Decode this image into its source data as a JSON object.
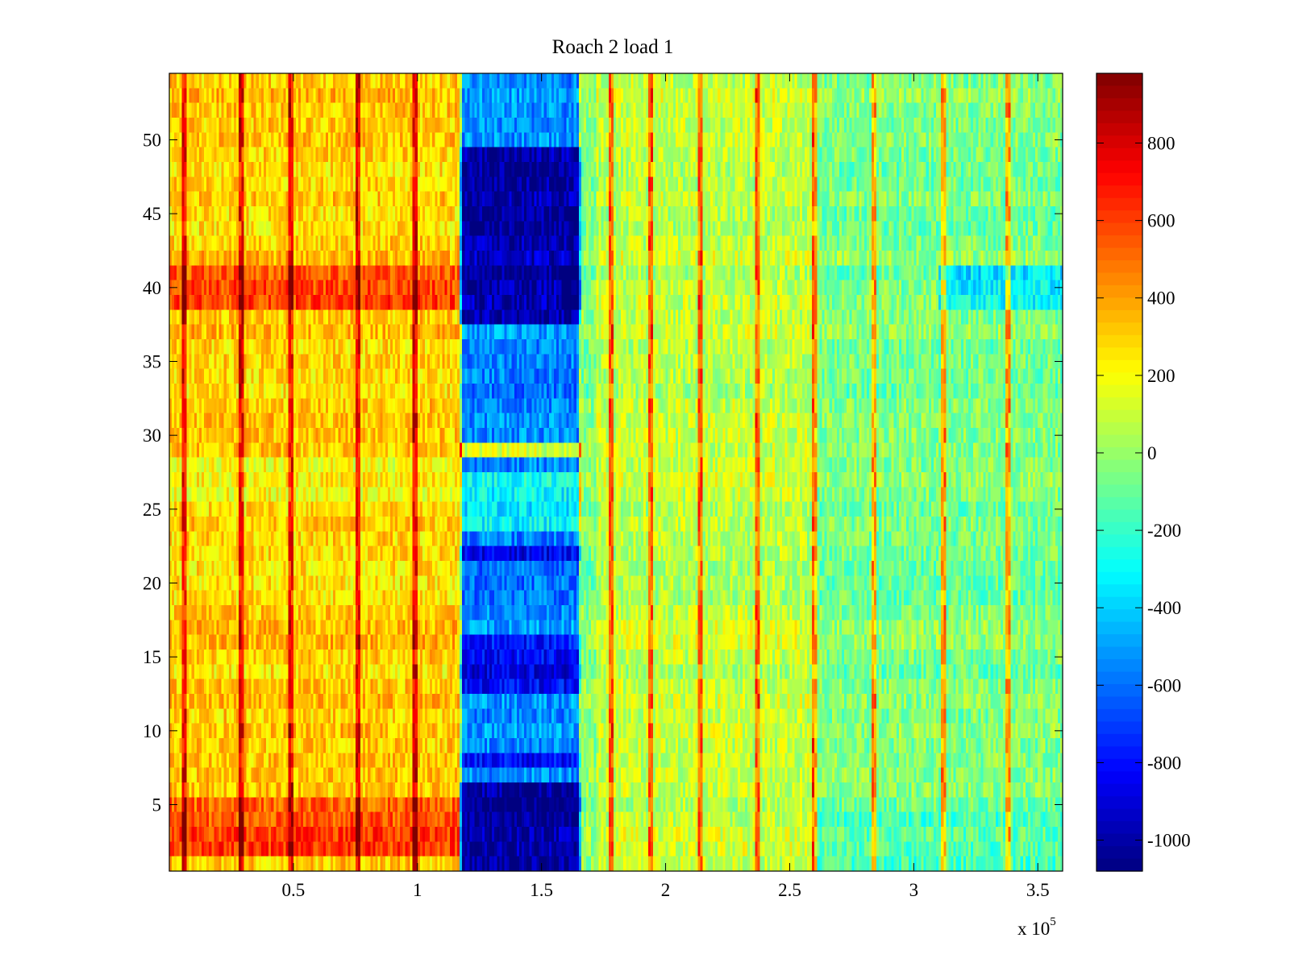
{
  "chart_data": {
    "type": "heatmap",
    "title": "Roach 2 load 1",
    "xlabel": "",
    "ylabel": "",
    "x_multiplier_label": "x 10",
    "x_multiplier_exponent": "5",
    "xlim": [
      0,
      3.6
    ],
    "ylim": [
      0.5,
      54.5
    ],
    "x_ticks": [
      0.5,
      1,
      1.5,
      2,
      2.5,
      3,
      3.5
    ],
    "x_tick_labels": [
      "0.5",
      "1",
      "1.5",
      "2",
      "2.5",
      "3",
      "3.5"
    ],
    "y_ticks": [
      5,
      10,
      15,
      20,
      25,
      30,
      35,
      40,
      45,
      50
    ],
    "y_tick_labels": [
      "5",
      "10",
      "15",
      "20",
      "25",
      "30",
      "35",
      "40",
      "45",
      "50"
    ],
    "rows": 54,
    "columns": 360,
    "colorbar": {
      "colormap": "jet",
      "clim": [
        -1080,
        980
      ],
      "ticks": [
        800,
        600,
        400,
        200,
        0,
        -200,
        -400,
        -600,
        -800,
        -1000
      ],
      "tick_labels": [
        "800",
        "600",
        "400",
        "200",
        "0",
        "-200",
        "-400",
        "-600",
        "-800",
        "-1000"
      ]
    },
    "regions": [
      {
        "x_range": [
          0,
          1.17
        ],
        "mean_value": 300,
        "note": "warm band, hottest near rows 39-41 and 2-5 (about 550-650)"
      },
      {
        "x_range": [
          1.18,
          1.65
        ],
        "mean_value": -550,
        "note": "cold band, deepest near rows 38-49 and 1-5 (about -1050)"
      },
      {
        "x_range": [
          1.66,
          2.6
        ],
        "mean_value": 80,
        "note": "neutral band"
      },
      {
        "x_range": [
          2.6,
          3.6
        ],
        "mean_value": -60,
        "note": "slightly cool band, cooler near rows 1-4 and 39-41 at x 3.1-3.5"
      }
    ],
    "hot_columns_x": [
      0.06,
      0.29,
      0.49,
      0.76,
      0.99,
      1.78,
      1.94,
      2.14,
      2.37,
      2.6,
      2.84,
      3.12,
      3.38
    ]
  }
}
